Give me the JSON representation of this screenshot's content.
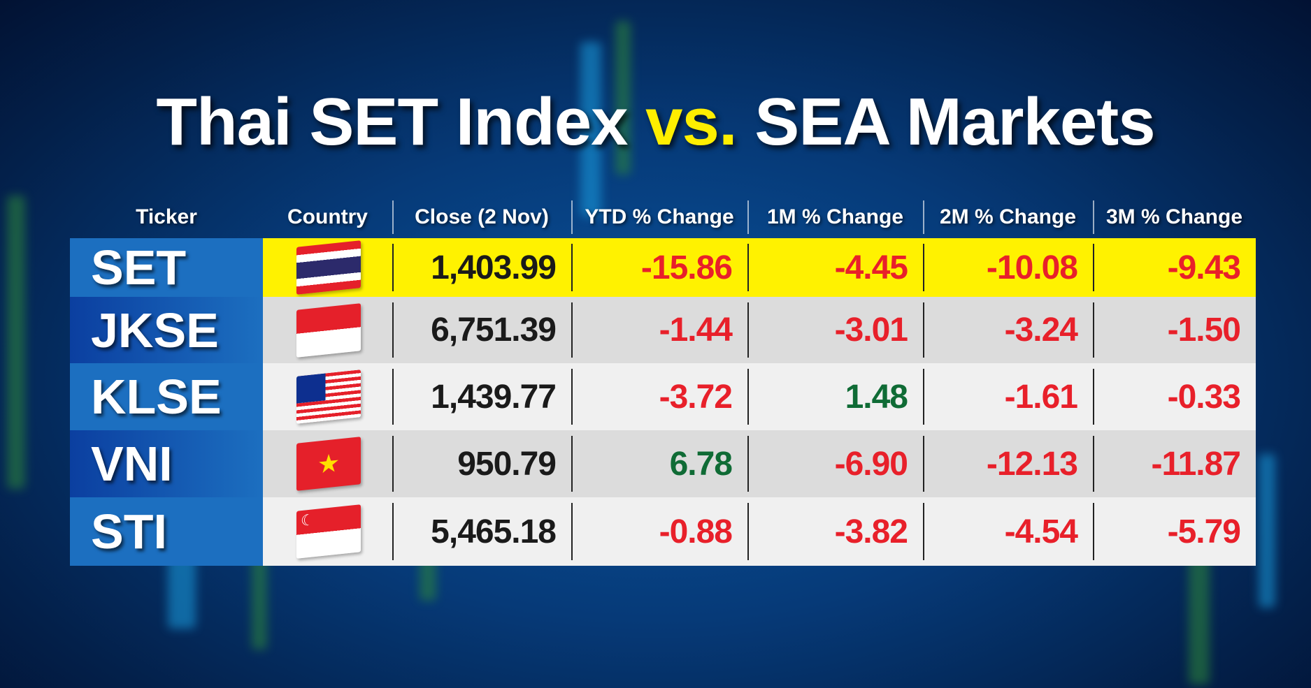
{
  "title": {
    "part1": "Thai SET Index ",
    "vs": "vs.",
    "part2": " SEA Markets"
  },
  "headers": [
    "Ticker",
    "Country",
    "Close (2 Nov)",
    "YTD % Change",
    "1M % Change",
    "2M % Change",
    "3M % Change"
  ],
  "colors": {
    "negative": "#e8202a",
    "positive": "#0f6b35",
    "highlight": "#fff200",
    "ticker_bg": "#1c6fc0"
  },
  "rows": [
    {
      "ticker": "SET",
      "country_flag": "thailand-flag",
      "close": "1,403.99",
      "ytd": "-15.86",
      "m1": "-4.45",
      "m2": "-10.08",
      "m3": "-9.43"
    },
    {
      "ticker": "JKSE",
      "country_flag": "indonesia-flag",
      "close": "6,751.39",
      "ytd": "-1.44",
      "m1": "-3.01",
      "m2": "-3.24",
      "m3": "-1.50"
    },
    {
      "ticker": "KLSE",
      "country_flag": "malaysia-flag",
      "close": "1,439.77",
      "ytd": "-3.72",
      "m1": "1.48",
      "m2": "-1.61",
      "m3": "-0.33"
    },
    {
      "ticker": "VNI",
      "country_flag": "vietnam-flag",
      "close": "950.79",
      "ytd": "6.78",
      "m1": "-6.90",
      "m2": "-12.13",
      "m3": "-11.87"
    },
    {
      "ticker": "STI",
      "country_flag": "singapore-flag",
      "close": "5,465.18",
      "ytd": "-0.88",
      "m1": "-3.82",
      "m2": "-4.54",
      "m3": "-5.79"
    }
  ]
}
